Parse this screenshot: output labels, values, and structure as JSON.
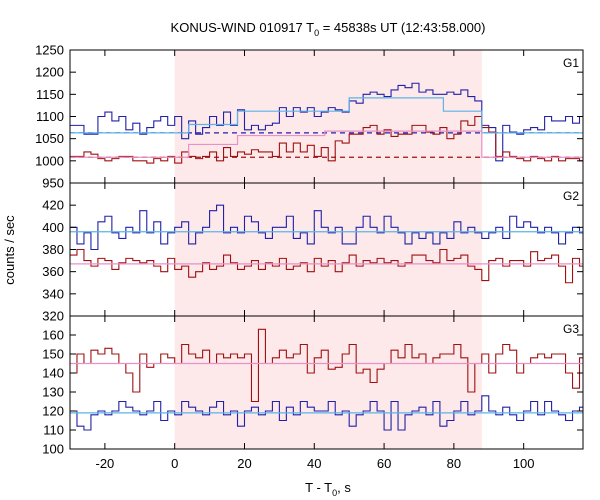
{
  "chart_data": {
    "type": "line",
    "title_main": "KONUS-WIND 010917 T",
    "title_sub": "0",
    "title_rest": " = 45838s UT (12:43:58.000)",
    "ylabel": "counts / sec",
    "xlabel_main": "T - T",
    "xlabel_sub": "0",
    "xlabel_rest": ", s",
    "xlim": [
      -30,
      117
    ],
    "xticks": [
      -20,
      0,
      20,
      40,
      60,
      80,
      100
    ],
    "xtick_labels": [
      "-20",
      "0",
      "20",
      "40",
      "60",
      "80",
      "100"
    ],
    "shade": [
      0,
      88
    ],
    "colors": {
      "blue": "#2020a8",
      "red": "#a01010",
      "lightblue": "#5ab4e8",
      "pink": "#e890c8",
      "shade": "#fde8ea"
    },
    "panels": [
      {
        "name": "G1",
        "ylim": [
          950,
          1250
        ],
        "yticks": [
          950,
          1000,
          1050,
          1100,
          1150,
          1200,
          1250
        ],
        "ytick_labels": [
          "950",
          "1000",
          "1050",
          "1100",
          "1150",
          "1200",
          "1250"
        ],
        "series": [
          {
            "color": "blue",
            "x0": -30,
            "dt": 2,
            "values": [
              1080,
              1080,
              1060,
              1060,
              1100,
              1110,
              1090,
              1100,
              1070,
              1085,
              1060,
              1075,
              1090,
              1100,
              1080,
              1100,
              1050,
              1090,
              1060,
              1075,
              1100,
              1080,
              1110,
              1080,
              1115,
              1070,
              1080,
              1070,
              1080,
              1085,
              1120,
              1100,
              1120,
              1110,
              1120,
              1100,
              1110,
              1120,
              1115,
              1110,
              1135,
              1130,
              1150,
              1155,
              1150,
              1145,
              1160,
              1170,
              1165,
              1175,
              1155,
              1160,
              1150,
              1150,
              1155,
              1150,
              1160,
              1145,
              1135,
              1080,
              1075,
              1000,
              1080,
              1065,
              1060,
              1070,
              1075,
              1070,
              1100,
              1090,
              1090,
              1100,
              1085,
              1100
            ]
          },
          {
            "color": "red",
            "x0": -30,
            "dt": 2,
            "values": [
              1010,
              1010,
              1020,
              1015,
              1005,
              1000,
              1005,
              1010,
              1010,
              1000,
              1000,
              995,
              1005,
              1000,
              1010,
              995,
              1020,
              1010,
              1005,
              1010,
              1020,
              1000,
              1030,
              1010,
              1020,
              1015,
              1025,
              1020,
              1020,
              1010,
              1040,
              1020,
              1040,
              1020,
              1035,
              1010,
              1030,
              1000,
              1045,
              1040,
              1060,
              1060,
              1075,
              1080,
              1060,
              1070,
              1055,
              1060,
              1060,
              1080,
              1080,
              1065,
              1060,
              1075,
              1050,
              1060,
              1090,
              1080,
              1100,
              1075,
              1065,
              1010,
              1020,
              1010,
              1005,
              1000,
              1010,
              1005,
              1000,
              1010,
              1000,
              1005,
              1005,
              1000
            ]
          },
          {
            "color": "lightblue",
            "step": [
              [
                -30,
                1063
              ],
              [
                4,
                1063
              ],
              [
                4,
                1082
              ],
              [
                18,
                1082
              ],
              [
                18,
                1112
              ],
              [
                50,
                1112
              ],
              [
                50,
                1142
              ],
              [
                77,
                1142
              ],
              [
                77,
                1112
              ],
              [
                88,
                1112
              ],
              [
                88,
                1063
              ],
              [
                117,
                1063
              ]
            ]
          },
          {
            "color": "pink",
            "step": [
              [
                -30,
                1008
              ],
              [
                4,
                1008
              ],
              [
                4,
                1037
              ],
              [
                18,
                1037
              ],
              [
                18,
                1057
              ],
              [
                43,
                1057
              ],
              [
                43,
                1067
              ],
              [
                77,
                1067
              ],
              [
                77,
                1067
              ],
              [
                88,
                1067
              ],
              [
                88,
                1008
              ],
              [
                117,
                1008
              ]
            ]
          }
        ],
        "bg_levels": [
          {
            "color": "blue",
            "value": 1063
          },
          {
            "color": "red",
            "value": 1008
          }
        ]
      },
      {
        "name": "G2",
        "ylim": [
          320,
          440
        ],
        "yticks": [
          320,
          340,
          360,
          380,
          400,
          420
        ],
        "ytick_labels": [
          "320",
          "340",
          "360",
          "380",
          "400",
          "420"
        ],
        "series": [
          {
            "color": "blue",
            "x0": -30,
            "dt": 2,
            "values": [
              400,
              385,
              395,
              380,
              405,
              410,
              395,
              390,
              400,
              395,
              415,
              395,
              405,
              385,
              395,
              400,
              405,
              385,
              395,
              400,
              415,
              420,
              395,
              400,
              395,
              410,
              405,
              395,
              390,
              400,
              400,
              410,
              390,
              395,
              385,
              415,
              400,
              395,
              400,
              385,
              385,
              400,
              410,
              400,
              395,
              410,
              400,
              395,
              385,
              395,
              390,
              395,
              385,
              395,
              390,
              405,
              395,
              400,
              395,
              390,
              395,
              400,
              390,
              410,
              400,
              405,
              400,
              395,
              400,
              395,
              385,
              395,
              400,
              395
            ]
          },
          {
            "color": "red",
            "x0": -30,
            "dt": 2,
            "values": [
              375,
              380,
              370,
              365,
              372,
              370,
              362,
              368,
              372,
              370,
              368,
              370,
              365,
              360,
              372,
              362,
              365,
              355,
              360,
              368,
              362,
              365,
              375,
              368,
              362,
              365,
              370,
              362,
              368,
              365,
              372,
              362,
              365,
              368,
              360,
              372,
              365,
              370,
              360,
              368,
              375,
              365,
              370,
              368,
              372,
              368,
              370,
              365,
              368,
              375,
              375,
              370,
              368,
              380,
              370,
              372,
              375,
              365,
              362,
              352,
              370,
              372,
              365,
              370,
              370,
              365,
              378,
              370,
              372,
              375,
              365,
              350,
              372,
              365
            ]
          },
          {
            "color": "lightblue",
            "step": [
              [
                -30,
                396
              ],
              [
                117,
                396
              ]
            ]
          },
          {
            "color": "pink",
            "step": [
              [
                -30,
                367
              ],
              [
                117,
                367
              ]
            ]
          }
        ]
      },
      {
        "name": "G3",
        "ylim": [
          100,
          170
        ],
        "yticks": [
          100,
          110,
          120,
          130,
          140,
          150,
          160
        ],
        "ytick_labels": [
          "100",
          "110",
          "120",
          "130",
          "140",
          "150",
          "160"
        ],
        "series": [
          {
            "color": "red",
            "x0": -30,
            "dt": 2,
            "values": [
              140,
              150,
              145,
              152,
              150,
              153,
              150,
              145,
              140,
              130,
              150,
              143,
              145,
              150,
              148,
              145,
              155,
              150,
              148,
              152,
              145,
              150,
              148,
              150,
              148,
              150,
              125,
              163,
              145,
              148,
              152,
              148,
              150,
              155,
              140,
              148,
              152,
              142,
              143,
              150,
              155,
              140,
              142,
              135,
              142,
              145,
              152,
              148,
              155,
              148,
              150,
              145,
              148,
              150,
              150,
              155,
              148,
              130,
              145,
              150,
              140,
              150,
              155,
              152,
              140,
              145,
              148,
              150,
              148,
              150,
              150,
              140,
              132,
              148
            ]
          },
          {
            "color": "blue",
            "x0": -30,
            "dt": 2,
            "values": [
              120,
              112,
              110,
              118,
              120,
              118,
              120,
              125,
              122,
              120,
              118,
              120,
              125,
              115,
              120,
              118,
              125,
              122,
              120,
              118,
              122,
              125,
              118,
              120,
              112,
              120,
              122,
              118,
              120,
              125,
              115,
              122,
              118,
              125,
              122,
              120,
              120,
              125,
              118,
              120,
              112,
              118,
              120,
              125,
              120,
              110,
              125,
              110,
              118,
              120,
              122,
              118,
              125,
              112,
              115,
              120,
              125,
              118,
              120,
              128,
              120,
              118,
              122,
              118,
              115,
              120,
              125,
              118,
              125,
              120,
              118,
              115,
              120,
              122
            ]
          },
          {
            "color": "pink",
            "step": [
              [
                -30,
                145
              ],
              [
                117,
                145
              ]
            ]
          },
          {
            "color": "lightblue",
            "step": [
              [
                -30,
                119
              ],
              [
                117,
                119
              ]
            ]
          }
        ]
      }
    ]
  }
}
